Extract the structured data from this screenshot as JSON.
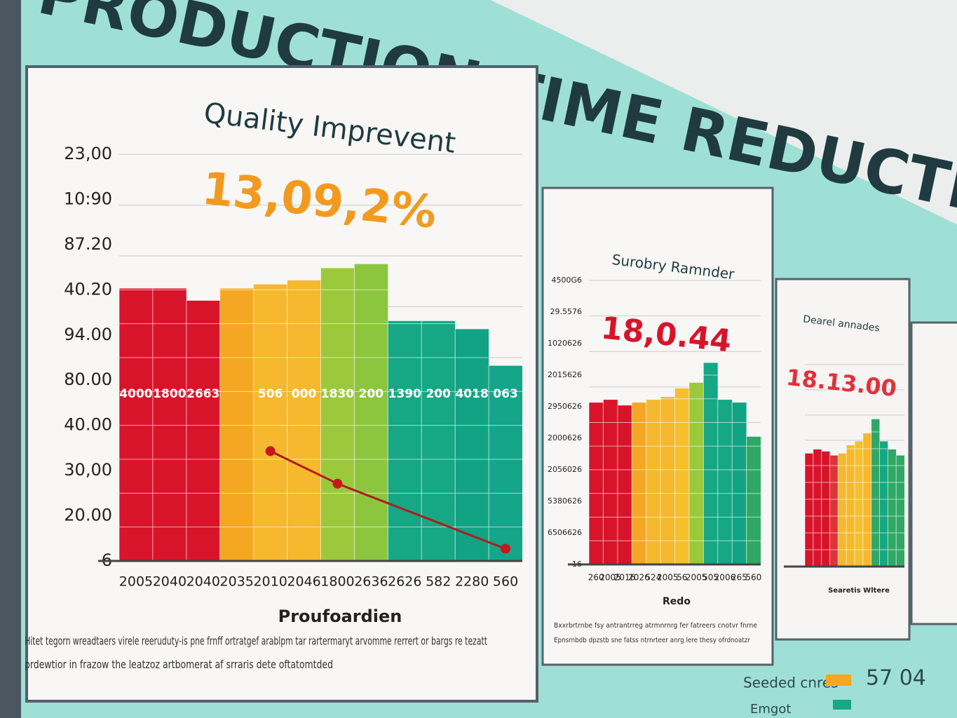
{
  "header": {
    "title": "PRODUCTION TIME REDUCTION"
  },
  "panels": [
    {
      "title": "Quality Imprevent",
      "highlight": "13,09,2%",
      "yticks": [
        "23,00",
        "10:90",
        "87.20",
        "40.20",
        "94.00",
        "80.00",
        "40.00",
        "30,00",
        "20.00",
        "6"
      ],
      "categories": [
        "2005",
        "2040",
        "2040",
        "2035",
        "2010",
        "2046",
        "1800",
        "2636",
        "2626",
        "582",
        "2280",
        "560"
      ],
      "values": [
        67,
        67,
        64,
        67,
        68,
        69,
        72,
        73,
        59,
        59,
        57,
        48
      ],
      "colors": [
        "#d8142a",
        "#d8142a",
        "#d8142a",
        "#f5a623",
        "#f5b82e",
        "#f5b82e",
        "#9cc93c",
        "#8cc63f",
        "#16a784",
        "#16a784",
        "#12a385",
        "#14a58a"
      ],
      "bar_texts": [
        "4000",
        "1800",
        "2663",
        "",
        "506",
        "000",
        "1830",
        "200",
        "1390",
        "200",
        "4018",
        "063"
      ],
      "trend": [
        null,
        null,
        null,
        null,
        27,
        null,
        19,
        null,
        null,
        null,
        null,
        3
      ],
      "ylim": [
        0,
        100
      ],
      "xlabel": "Proufoardien",
      "caption": [
        "Hitet tegorn wreadtaers virele reeruduty-is pne frnff ortratgef arablpm tar rartermaryt arvomme rerrert or bargs re tezatt",
        "prdewtior in frazow the leatzoz artbomerat af srraris dete oftatomtded"
      ]
    },
    {
      "title": "Surobry Ramnder",
      "highlight": "18,0.44",
      "yticks": [
        "4500G6",
        "29.5576",
        "1020626",
        "2015626",
        "2950626",
        "2000626",
        "2056026",
        "5380626",
        "6506626",
        "16"
      ],
      "categories": [
        "260",
        "2005",
        "2016",
        "2026",
        "524",
        "2005",
        "56",
        "2005",
        "505",
        "2006",
        "265",
        "560"
      ],
      "values": [
        57,
        58,
        56,
        57,
        58,
        59,
        62,
        64,
        71,
        58,
        57,
        45
      ],
      "colors": [
        "#d8142a",
        "#d8142a",
        "#d8142a",
        "#f5a623",
        "#f5b82e",
        "#f5b82e",
        "#f5c02e",
        "#9cc93c",
        "#16a784",
        "#16a784",
        "#12a385",
        "#2fa866"
      ],
      "xlabel": "Redo",
      "ylim": [
        0,
        100
      ],
      "caption": [
        "Bxxrbrtrnbe fsy antrantrreg atrmnrnrg fer fatreers cnotvr fnrne",
        "Epnsrnbdb dpzstb sne fatss ntrnrteer anrg lere thesy ofrdnoatzr"
      ]
    },
    {
      "title": "Dearel annades",
      "highlight": "18.13.00",
      "values": [
        56,
        58,
        57,
        55,
        56,
        60,
        62,
        66,
        73,
        62,
        58,
        55
      ],
      "colors": [
        "#d8142a",
        "#d8142a",
        "#d8142a",
        "#e0323a",
        "#f5b82e",
        "#f5b82e",
        "#f5c02e",
        "#f5b82e",
        "#2fa866",
        "#16a784",
        "#2fa866",
        "#2fa866"
      ],
      "ylim": [
        0,
        100
      ],
      "xlabel": "Searetis Wltere"
    }
  ],
  "footer": {
    "left": "Seeded cnres",
    "left2": "Emgot",
    "right": "57 04"
  }
}
